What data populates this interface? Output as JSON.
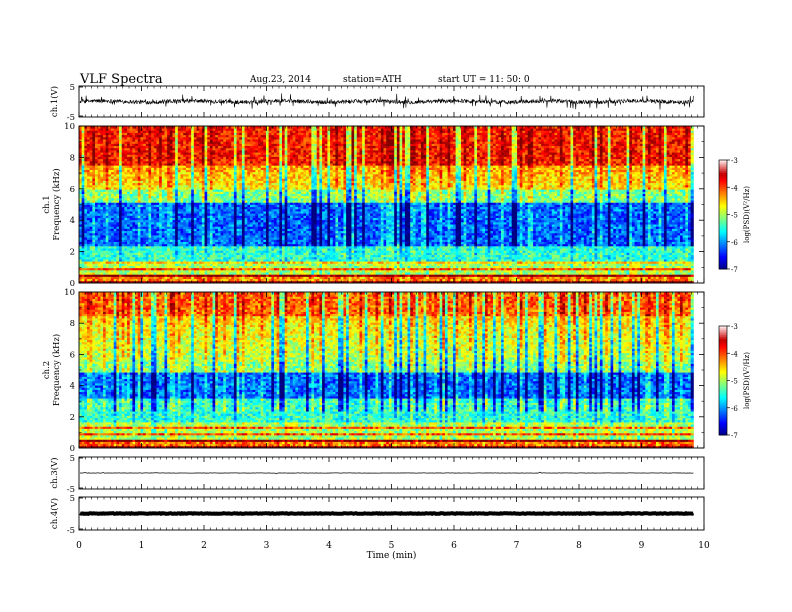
{
  "header": {
    "title": "VLF  Spectra",
    "date": "Aug.23, 2014",
    "station": "station=ATH",
    "start": "start  UT  =    11: 50: 0"
  },
  "chart_data": [
    {
      "type": "line",
      "panel": "ch1-waveform",
      "ylabel": "ch.1(V)",
      "xlim": [
        0,
        10
      ],
      "ylim": [
        -5,
        5
      ],
      "y_ticks": [
        "5",
        "-5"
      ],
      "series": [
        {
          "values_note": "",
          "baseline": 0
        }
      ]
    },
    {
      "type": "heatmap",
      "panel": "ch1-spectrogram",
      "ylabel_top": "ch.1",
      "ylabel": "Frequency  (kHz)",
      "xlim": [
        0,
        10
      ],
      "ylim": [
        0,
        10
      ],
      "y_ticks": [
        "0",
        "2",
        "4",
        "6",
        "8",
        "10"
      ],
      "colorbar": {
        "label": "log(PSD)(V²/Hz)",
        "range": [
          -7,
          -3
        ],
        "ticks": [
          "-3",
          "-4",
          "-5",
          "-6",
          "-7"
        ]
      }
    },
    {
      "type": "heatmap",
      "panel": "ch2-spectrogram",
      "ylabel_top": "ch.2",
      "ylabel": "Frequency  (kHz)",
      "xlim": [
        0,
        10
      ],
      "ylim": [
        0,
        10
      ],
      "y_ticks": [
        "0",
        "2",
        "4",
        "6",
        "8",
        "10"
      ],
      "colorbar": {
        "label": "log(PSD)(V²/Hz)",
        "range": [
          -7,
          -3
        ],
        "ticks": [
          "-3",
          "-4",
          "-5",
          "-6",
          "-7"
        ]
      }
    },
    {
      "type": "line",
      "panel": "ch3-waveform",
      "ylabel": "ch.3(V)",
      "xlim": [
        0,
        10
      ],
      "ylim": [
        -5,
        5
      ],
      "y_ticks": [
        "5",
        "-5"
      ]
    },
    {
      "type": "line",
      "panel": "ch4-waveform",
      "ylabel": "ch.4(V)",
      "xlim": [
        0,
        10
      ],
      "ylim": [
        -5,
        5
      ],
      "y_ticks": [
        "5",
        "-5"
      ],
      "xlabel": "Time  (min)",
      "x_ticks": [
        "0",
        "1",
        "2",
        "3",
        "4",
        "5",
        "6",
        "7",
        "8",
        "9",
        "10"
      ]
    }
  ]
}
